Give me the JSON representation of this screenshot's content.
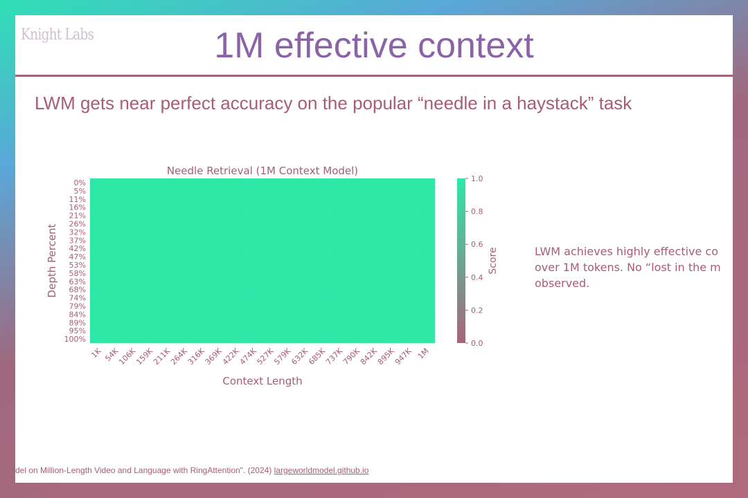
{
  "slide": {
    "logo_text": "Knight Labs",
    "title": "1M effective context",
    "subtitle": "LWM gets near perfect accuracy on the popular “needle in a haystack” task",
    "side_note": "LWM achieves highly effective co\nover 1M tokens. No “lost in the m\nobserved.",
    "citation_text": "del on Million-Length Video and Language with RingAttention\". (2024) ",
    "citation_link": "largeworldmodel.github.io"
  },
  "colors": {
    "accent": "#a85c77",
    "title": "#8a64a6",
    "heat_high": "#2fe8a8",
    "heat_low": "#a8637b"
  },
  "chart_data": {
    "type": "heatmap",
    "title": "Needle Retrieval (1M Context Model)",
    "xlabel": "Context Length",
    "ylabel": "Depth Percent",
    "x": [
      "1K",
      "54K",
      "106K",
      "159K",
      "211K",
      "264K",
      "316K",
      "369K",
      "422K",
      "474K",
      "527K",
      "579K",
      "632K",
      "685K",
      "737K",
      "790K",
      "842K",
      "895K",
      "947K",
      "1M"
    ],
    "y": [
      "0%",
      "5%",
      "11%",
      "16%",
      "21%",
      "26%",
      "32%",
      "37%",
      "42%",
      "47%",
      "53%",
      "58%",
      "63%",
      "68%",
      "74%",
      "79%",
      "84%",
      "89%",
      "95%",
      "100%"
    ],
    "value_default": 1.0,
    "colorbar": {
      "label": "Score",
      "range": [
        0.0,
        1.0
      ],
      "ticks": [
        "0.0",
        "0.2",
        "0.4",
        "0.6",
        "0.8",
        "1.0"
      ]
    }
  }
}
